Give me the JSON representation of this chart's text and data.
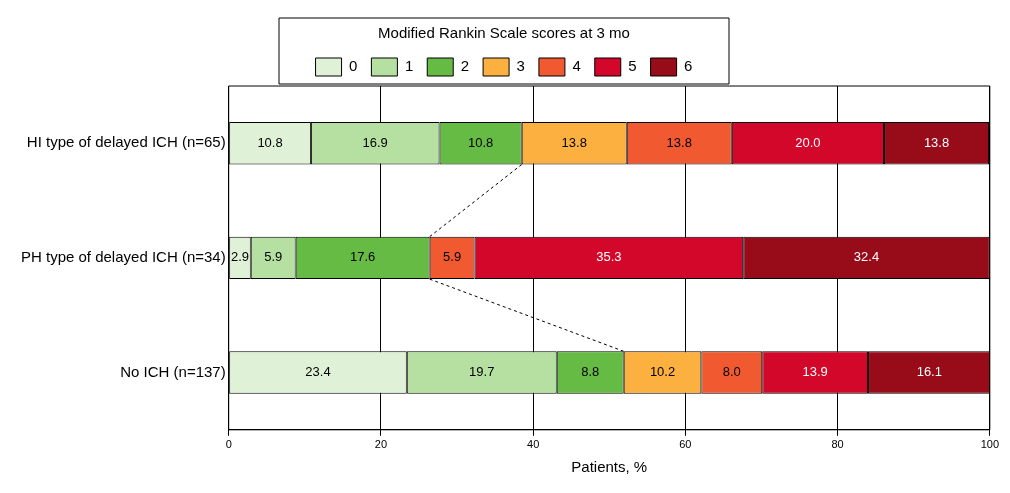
{
  "chart_data": {
    "type": "bar",
    "orientation": "horizontal",
    "stacked": true,
    "legend_title": "Modified Rankin Scale scores at 3 mo",
    "xlabel": "Patients, %",
    "categories": [
      "HI type of delayed ICH (n=65)",
      "PH type of delayed ICH (n=34)",
      "No ICH (n=137)"
    ],
    "series": [
      {
        "name": "0",
        "color": "#dff2d8",
        "values": [
          10.8,
          2.9,
          23.4
        ],
        "value_labels": [
          "10.8",
          "2.9",
          "23.4"
        ]
      },
      {
        "name": "1",
        "color": "#b5e0a2",
        "values": [
          16.9,
          5.9,
          19.7
        ],
        "value_labels": [
          "16.9",
          "5.9",
          "19.7"
        ]
      },
      {
        "name": "2",
        "color": "#66bb44",
        "values": [
          10.8,
          17.6,
          8.8
        ],
        "value_labels": [
          "10.8",
          "17.6",
          "8.8"
        ]
      },
      {
        "name": "3",
        "color": "#fbb040",
        "values": [
          13.8,
          null,
          10.2
        ],
        "value_labels": [
          "13.8",
          null,
          "10.2"
        ]
      },
      {
        "name": "4",
        "color": "#f15a30",
        "values": [
          13.8,
          5.9,
          8
        ],
        "value_labels": [
          "13.8",
          "5.9",
          "8.0"
        ]
      },
      {
        "name": "5",
        "color": "#d2072a",
        "values": [
          20,
          35.3,
          13.9
        ],
        "value_labels": [
          "20.0",
          "35.3",
          "13.9"
        ]
      },
      {
        "name": "6",
        "color": "#980c1a",
        "values": [
          13.8,
          32.4,
          16.1
        ],
        "value_labels": [
          "13.8",
          "32.4",
          "16.1"
        ]
      }
    ],
    "xlim": [
      0,
      100
    ],
    "xticks": [
      0,
      20,
      40,
      60,
      80,
      100
    ],
    "grid": "x",
    "legend": "top"
  }
}
